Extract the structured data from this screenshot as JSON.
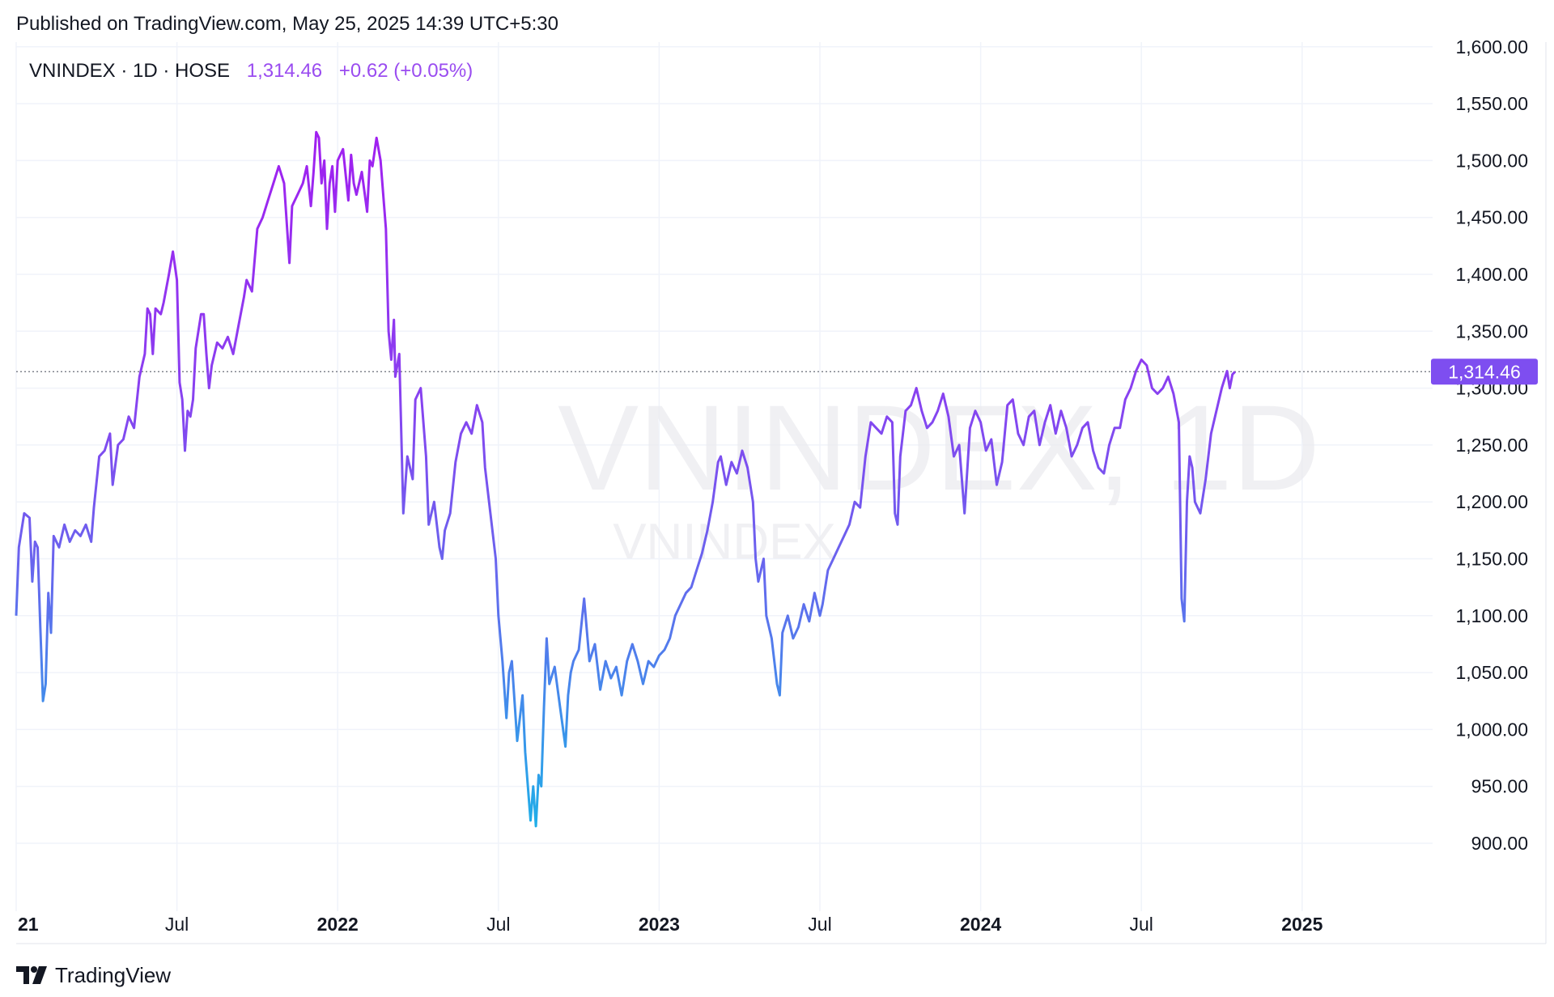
{
  "published_text": "Published on TradingView.com, May 25, 2025 14:39 UTC+5:30",
  "header": {
    "symbol_text": "VNINDEX · 1D · HOSE",
    "price": "1,314.46",
    "change": "+0.62 (+0.05%)"
  },
  "watermark": {
    "main": "VNINDEX, 1D",
    "sub": "VNINDEX"
  },
  "last_price_label": "1,314.46",
  "footer": {
    "brand": "TradingView"
  },
  "colors": {
    "purple": "#9c27f0",
    "mid": "#7b5cf0",
    "blue": "#1ea7e8",
    "price_tag_bg": "#7e4ef0",
    "grid": "#f0f3fa",
    "text": "#131722"
  },
  "chart_data": {
    "type": "line",
    "y_ticks": [
      "900.00",
      "950.00",
      "1,000.00",
      "1,050.00",
      "1,100.00",
      "1,150.00",
      "1,200.00",
      "1,250.00",
      "1,300.00",
      "1,350.00",
      "1,400.00",
      "1,450.00",
      "1,500.00",
      "1,550.00",
      "1,600.00"
    ],
    "x_ticks": [
      {
        "label": "21",
        "month_index": 0,
        "bold": true
      },
      {
        "label": "Jul",
        "month_index": 6,
        "bold": false
      },
      {
        "label": "2022",
        "month_index": 12,
        "bold": true
      },
      {
        "label": "Jul",
        "month_index": 18,
        "bold": false
      },
      {
        "label": "2023",
        "month_index": 24,
        "bold": true
      },
      {
        "label": "Jul",
        "month_index": 30,
        "bold": false
      },
      {
        "label": "2024",
        "month_index": 36,
        "bold": true
      },
      {
        "label": "Jul",
        "month_index": 42,
        "bold": false
      },
      {
        "label": "2025",
        "month_index": 48,
        "bold": true
      }
    ],
    "ylim": [
      850,
      1600
    ],
    "last_value": 1314.46,
    "series": [
      {
        "points": [
          [
            0.0,
            1100
          ],
          [
            0.1,
            1160
          ],
          [
            0.3,
            1190
          ],
          [
            0.5,
            1186
          ],
          [
            0.6,
            1130
          ],
          [
            0.7,
            1165
          ],
          [
            0.8,
            1160
          ],
          [
            0.9,
            1090
          ],
          [
            1.0,
            1025
          ],
          [
            1.1,
            1040
          ],
          [
            1.2,
            1120
          ],
          [
            1.3,
            1085
          ],
          [
            1.4,
            1170
          ],
          [
            1.6,
            1160
          ],
          [
            1.8,
            1180
          ],
          [
            2.0,
            1165
          ],
          [
            2.2,
            1175
          ],
          [
            2.4,
            1170
          ],
          [
            2.6,
            1180
          ],
          [
            2.8,
            1165
          ],
          [
            2.9,
            1195
          ],
          [
            3.1,
            1240
          ],
          [
            3.3,
            1245
          ],
          [
            3.5,
            1260
          ],
          [
            3.6,
            1215
          ],
          [
            3.8,
            1250
          ],
          [
            4.0,
            1255
          ],
          [
            4.2,
            1275
          ],
          [
            4.4,
            1265
          ],
          [
            4.6,
            1310
          ],
          [
            4.8,
            1330
          ],
          [
            4.9,
            1370
          ],
          [
            5.0,
            1365
          ],
          [
            5.1,
            1330
          ],
          [
            5.2,
            1370
          ],
          [
            5.4,
            1365
          ],
          [
            5.5,
            1375
          ],
          [
            5.7,
            1400
          ],
          [
            5.85,
            1420
          ],
          [
            6.0,
            1395
          ],
          [
            6.1,
            1305
          ],
          [
            6.2,
            1290
          ],
          [
            6.3,
            1245
          ],
          [
            6.4,
            1280
          ],
          [
            6.5,
            1275
          ],
          [
            6.6,
            1290
          ],
          [
            6.7,
            1335
          ],
          [
            6.9,
            1365
          ],
          [
            7.0,
            1365
          ],
          [
            7.1,
            1330
          ],
          [
            7.2,
            1300
          ],
          [
            7.3,
            1320
          ],
          [
            7.5,
            1340
          ],
          [
            7.7,
            1335
          ],
          [
            7.9,
            1345
          ],
          [
            8.1,
            1330
          ],
          [
            8.3,
            1355
          ],
          [
            8.5,
            1380
          ],
          [
            8.6,
            1395
          ],
          [
            8.8,
            1385
          ],
          [
            9.0,
            1440
          ],
          [
            9.2,
            1450
          ],
          [
            9.4,
            1465
          ],
          [
            9.6,
            1480
          ],
          [
            9.8,
            1495
          ],
          [
            10.0,
            1480
          ],
          [
            10.2,
            1410
          ],
          [
            10.3,
            1460
          ],
          [
            10.5,
            1470
          ],
          [
            10.7,
            1480
          ],
          [
            10.85,
            1495
          ],
          [
            11.0,
            1460
          ],
          [
            11.1,
            1490
          ],
          [
            11.2,
            1525
          ],
          [
            11.3,
            1520
          ],
          [
            11.4,
            1480
          ],
          [
            11.5,
            1500
          ],
          [
            11.6,
            1440
          ],
          [
            11.7,
            1480
          ],
          [
            11.8,
            1495
          ],
          [
            11.9,
            1455
          ],
          [
            12.0,
            1500
          ],
          [
            12.2,
            1510
          ],
          [
            12.4,
            1465
          ],
          [
            12.5,
            1505
          ],
          [
            12.6,
            1480
          ],
          [
            12.7,
            1470
          ],
          [
            12.9,
            1490
          ],
          [
            13.1,
            1455
          ],
          [
            13.2,
            1500
          ],
          [
            13.3,
            1495
          ],
          [
            13.45,
            1520
          ],
          [
            13.6,
            1500
          ],
          [
            13.8,
            1440
          ],
          [
            13.9,
            1350
          ],
          [
            14.0,
            1325
          ],
          [
            14.1,
            1360
          ],
          [
            14.15,
            1310
          ],
          [
            14.3,
            1330
          ],
          [
            14.45,
            1190
          ],
          [
            14.6,
            1240
          ],
          [
            14.8,
            1220
          ],
          [
            14.9,
            1290
          ],
          [
            15.1,
            1300
          ],
          [
            15.3,
            1240
          ],
          [
            15.4,
            1180
          ],
          [
            15.6,
            1200
          ],
          [
            15.8,
            1160
          ],
          [
            15.9,
            1150
          ],
          [
            16.0,
            1175
          ],
          [
            16.2,
            1190
          ],
          [
            16.4,
            1235
          ],
          [
            16.6,
            1260
          ],
          [
            16.8,
            1270
          ],
          [
            17.0,
            1260
          ],
          [
            17.2,
            1285
          ],
          [
            17.4,
            1270
          ],
          [
            17.5,
            1230
          ],
          [
            17.7,
            1190
          ],
          [
            17.9,
            1150
          ],
          [
            18.0,
            1100
          ],
          [
            18.15,
            1060
          ],
          [
            18.3,
            1010
          ],
          [
            18.4,
            1050
          ],
          [
            18.5,
            1060
          ],
          [
            18.7,
            990
          ],
          [
            18.9,
            1030
          ],
          [
            19.0,
            980
          ],
          [
            19.2,
            920
          ],
          [
            19.3,
            950
          ],
          [
            19.4,
            915
          ],
          [
            19.5,
            960
          ],
          [
            19.6,
            950
          ],
          [
            19.7,
            1020
          ],
          [
            19.8,
            1080
          ],
          [
            19.9,
            1040
          ],
          [
            20.1,
            1055
          ],
          [
            20.3,
            1020
          ],
          [
            20.5,
            985
          ],
          [
            20.6,
            1030
          ],
          [
            20.7,
            1050
          ],
          [
            20.8,
            1060
          ],
          [
            21.0,
            1070
          ],
          [
            21.2,
            1115
          ],
          [
            21.4,
            1060
          ],
          [
            21.6,
            1075
          ],
          [
            21.8,
            1035
          ],
          [
            22.0,
            1060
          ],
          [
            22.2,
            1045
          ],
          [
            22.4,
            1055
          ],
          [
            22.6,
            1030
          ],
          [
            22.8,
            1060
          ],
          [
            23.0,
            1075
          ],
          [
            23.2,
            1060
          ],
          [
            23.4,
            1040
          ],
          [
            23.6,
            1060
          ],
          [
            23.8,
            1055
          ],
          [
            24.0,
            1065
          ],
          [
            24.2,
            1070
          ],
          [
            24.4,
            1080
          ],
          [
            24.6,
            1100
          ],
          [
            24.8,
            1110
          ],
          [
            25.0,
            1120
          ],
          [
            25.2,
            1125
          ],
          [
            25.4,
            1140
          ],
          [
            25.6,
            1155
          ],
          [
            25.8,
            1175
          ],
          [
            26.0,
            1200
          ],
          [
            26.2,
            1235
          ],
          [
            26.3,
            1240
          ],
          [
            26.5,
            1215
          ],
          [
            26.7,
            1235
          ],
          [
            26.9,
            1225
          ],
          [
            27.1,
            1245
          ],
          [
            27.3,
            1230
          ],
          [
            27.5,
            1200
          ],
          [
            27.6,
            1150
          ],
          [
            27.7,
            1130
          ],
          [
            27.9,
            1150
          ],
          [
            28.0,
            1100
          ],
          [
            28.2,
            1080
          ],
          [
            28.4,
            1040
          ],
          [
            28.5,
            1030
          ],
          [
            28.6,
            1085
          ],
          [
            28.8,
            1100
          ],
          [
            29.0,
            1080
          ],
          [
            29.2,
            1090
          ],
          [
            29.4,
            1110
          ],
          [
            29.6,
            1095
          ],
          [
            29.8,
            1120
          ],
          [
            30.0,
            1100
          ],
          [
            30.1,
            1110
          ],
          [
            30.3,
            1140
          ],
          [
            30.5,
            1150
          ],
          [
            30.7,
            1160
          ],
          [
            30.9,
            1170
          ],
          [
            31.1,
            1180
          ],
          [
            31.3,
            1200
          ],
          [
            31.5,
            1195
          ],
          [
            31.7,
            1240
          ],
          [
            31.9,
            1270
          ],
          [
            32.1,
            1265
          ],
          [
            32.3,
            1260
          ],
          [
            32.5,
            1275
          ],
          [
            32.7,
            1270
          ],
          [
            32.8,
            1190
          ],
          [
            32.9,
            1180
          ],
          [
            33.0,
            1240
          ],
          [
            33.2,
            1280
          ],
          [
            33.4,
            1285
          ],
          [
            33.6,
            1300
          ],
          [
            33.8,
            1280
          ],
          [
            34.0,
            1265
          ],
          [
            34.2,
            1270
          ],
          [
            34.4,
            1280
          ],
          [
            34.6,
            1295
          ],
          [
            34.8,
            1275
          ],
          [
            35.0,
            1240
          ],
          [
            35.2,
            1250
          ],
          [
            35.3,
            1220
          ],
          [
            35.4,
            1190
          ],
          [
            35.6,
            1265
          ],
          [
            35.8,
            1280
          ],
          [
            36.0,
            1270
          ],
          [
            36.2,
            1245
          ],
          [
            36.4,
            1255
          ],
          [
            36.6,
            1215
          ],
          [
            36.8,
            1235
          ],
          [
            37.0,
            1285
          ],
          [
            37.2,
            1290
          ],
          [
            37.4,
            1260
          ],
          [
            37.6,
            1250
          ],
          [
            37.8,
            1275
          ],
          [
            38.0,
            1280
          ],
          [
            38.2,
            1250
          ],
          [
            38.4,
            1270
          ],
          [
            38.6,
            1285
          ],
          [
            38.8,
            1260
          ],
          [
            39.0,
            1280
          ],
          [
            39.2,
            1265
          ],
          [
            39.4,
            1240
          ],
          [
            39.6,
            1250
          ],
          [
            39.8,
            1265
          ],
          [
            40.0,
            1270
          ],
          [
            40.2,
            1245
          ],
          [
            40.4,
            1230
          ],
          [
            40.6,
            1225
          ],
          [
            40.8,
            1250
          ],
          [
            41.0,
            1265
          ],
          [
            41.2,
            1265
          ],
          [
            41.4,
            1290
          ],
          [
            41.6,
            1300
          ],
          [
            41.8,
            1315
          ],
          [
            42.0,
            1325
          ],
          [
            42.2,
            1320
          ],
          [
            42.4,
            1300
          ],
          [
            42.6,
            1295
          ],
          [
            42.8,
            1300
          ],
          [
            43.0,
            1310
          ],
          [
            43.2,
            1295
          ],
          [
            43.4,
            1270
          ],
          [
            43.5,
            1115
          ],
          [
            43.6,
            1095
          ],
          [
            43.7,
            1200
          ],
          [
            43.8,
            1240
          ],
          [
            43.9,
            1230
          ],
          [
            44.0,
            1200
          ],
          [
            44.2,
            1190
          ],
          [
            44.4,
            1220
          ],
          [
            44.6,
            1260
          ],
          [
            44.8,
            1280
          ],
          [
            45.0,
            1300
          ],
          [
            45.2,
            1315
          ],
          [
            45.3,
            1300
          ],
          [
            45.4,
            1312
          ],
          [
            45.5,
            1314.46
          ]
        ]
      }
    ]
  }
}
